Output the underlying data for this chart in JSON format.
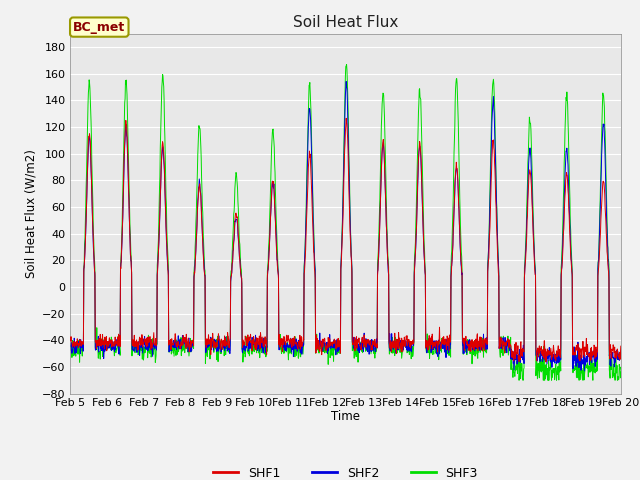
{
  "title": "Soil Heat Flux",
  "ylabel": "Soil Heat Flux (W/m2)",
  "xlabel": "Time",
  "annotation": "BC_met",
  "ylim": [
    -80,
    190
  ],
  "yticks": [
    -80,
    -60,
    -40,
    -20,
    0,
    20,
    40,
    60,
    80,
    100,
    120,
    140,
    160,
    180
  ],
  "colors": {
    "SHF1": "#dd0000",
    "SHF2": "#0000dd",
    "SHF3": "#00dd00"
  },
  "background_color": "#e8e8e8",
  "grid_color": "#ffffff",
  "fig_bg": "#f2f2f2",
  "x_tick_labels": [
    "Feb 5",
    "Feb 6",
    "Feb 7",
    "Feb 8",
    "Feb 9",
    "Feb 10",
    "Feb 11",
    "Feb 12",
    "Feb 13",
    "Feb 14",
    "Feb 15",
    "Feb 16",
    "Feb 17",
    "Feb 18",
    "Feb 19",
    "Feb 20"
  ],
  "day_peaks_shf1": [
    115,
    125,
    108,
    75,
    55,
    80,
    100,
    125,
    110,
    108,
    93,
    109,
    88,
    85,
    80
  ],
  "day_peaks_shf2": [
    112,
    120,
    105,
    78,
    52,
    80,
    135,
    152,
    107,
    105,
    90,
    140,
    103,
    103,
    122
  ],
  "day_peaks_shf3": [
    155,
    155,
    160,
    121,
    84,
    118,
    152,
    168,
    147,
    148,
    156,
    156,
    126,
    144,
    145
  ],
  "n_days": 15,
  "n_per_day": 96,
  "night_base_shf1": -42,
  "night_base_shf2": -44,
  "night_base_shf3": -46,
  "linewidth": 0.7
}
